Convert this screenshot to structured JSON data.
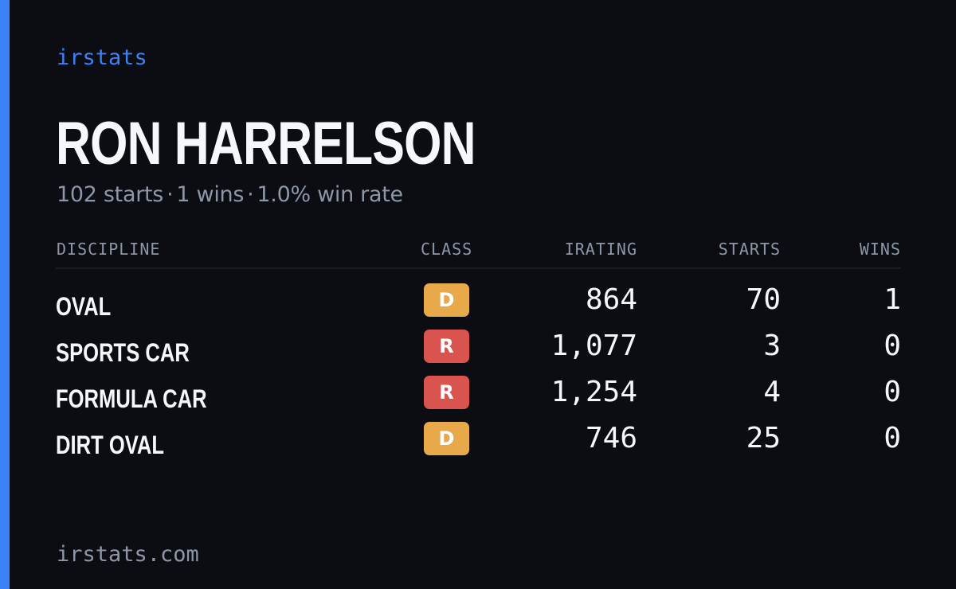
{
  "colors": {
    "background": "#0b0d13",
    "accent": "#3b82f6",
    "class_d": "#e8a94a",
    "class_r": "#d9534f"
  },
  "brand": "irstats",
  "driver": {
    "name": "RON HARRELSON",
    "starts_text": "102 starts",
    "wins_text": "1 wins",
    "win_rate_text": "1.0% win rate",
    "separator": "·"
  },
  "table": {
    "headers": {
      "discipline": "DISCIPLINE",
      "class": "CLASS",
      "irating": "IRATING",
      "starts": "STARTS",
      "wins": "WINS"
    },
    "rows": [
      {
        "discipline": "OVAL",
        "class": "D",
        "irating": "864",
        "starts": "70",
        "wins": "1"
      },
      {
        "discipline": "SPORTS CAR",
        "class": "R",
        "irating": "1,077",
        "starts": "3",
        "wins": "0"
      },
      {
        "discipline": "FORMULA CAR",
        "class": "R",
        "irating": "1,254",
        "starts": "4",
        "wins": "0"
      },
      {
        "discipline": "DIRT OVAL",
        "class": "D",
        "irating": "746",
        "starts": "25",
        "wins": "0"
      }
    ]
  },
  "footer": "irstats.com"
}
